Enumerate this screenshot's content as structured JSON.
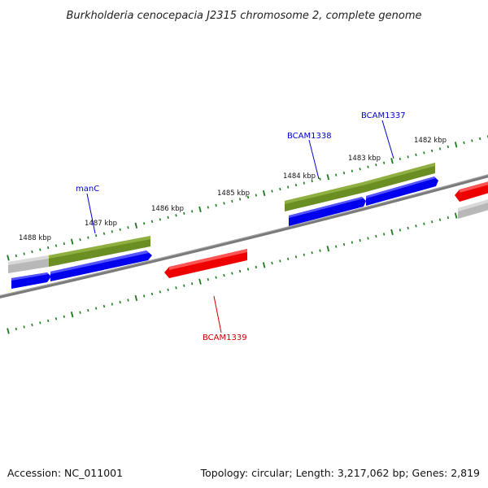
{
  "title": "Burkholderia cenocepacia J2315 chromosome 2, complete genome",
  "footer": {
    "accession": "Accession: NC_011001",
    "summary": "Topology: circular; Length: 3,217,062 bp; Genes: 2,819"
  },
  "colors": {
    "backbone": "#808080",
    "tick": "#1a7a1a",
    "gene_green": "#6b8e23",
    "cds_blue": "#0000ee",
    "cds_red": "#ee0000",
    "gray": "#b8b8b8",
    "label_blue": "#0000cc",
    "label_red": "#cc0000"
  },
  "scale_labels": [
    {
      "text": "1488 kbp"
    },
    {
      "text": "1487 kbp"
    },
    {
      "text": "1486 kbp"
    },
    {
      "text": "1485 kbp"
    },
    {
      "text": "1484 kbp"
    },
    {
      "text": "1483 kbp"
    },
    {
      "text": "1482 kbp"
    }
  ],
  "gene_labels": [
    {
      "text": "manC",
      "strand": "forward"
    },
    {
      "text": "BCAM1338",
      "strand": "forward"
    },
    {
      "text": "BCAM1337",
      "strand": "forward"
    },
    {
      "text": "BCAM1339",
      "strand": "reverse"
    }
  ]
}
